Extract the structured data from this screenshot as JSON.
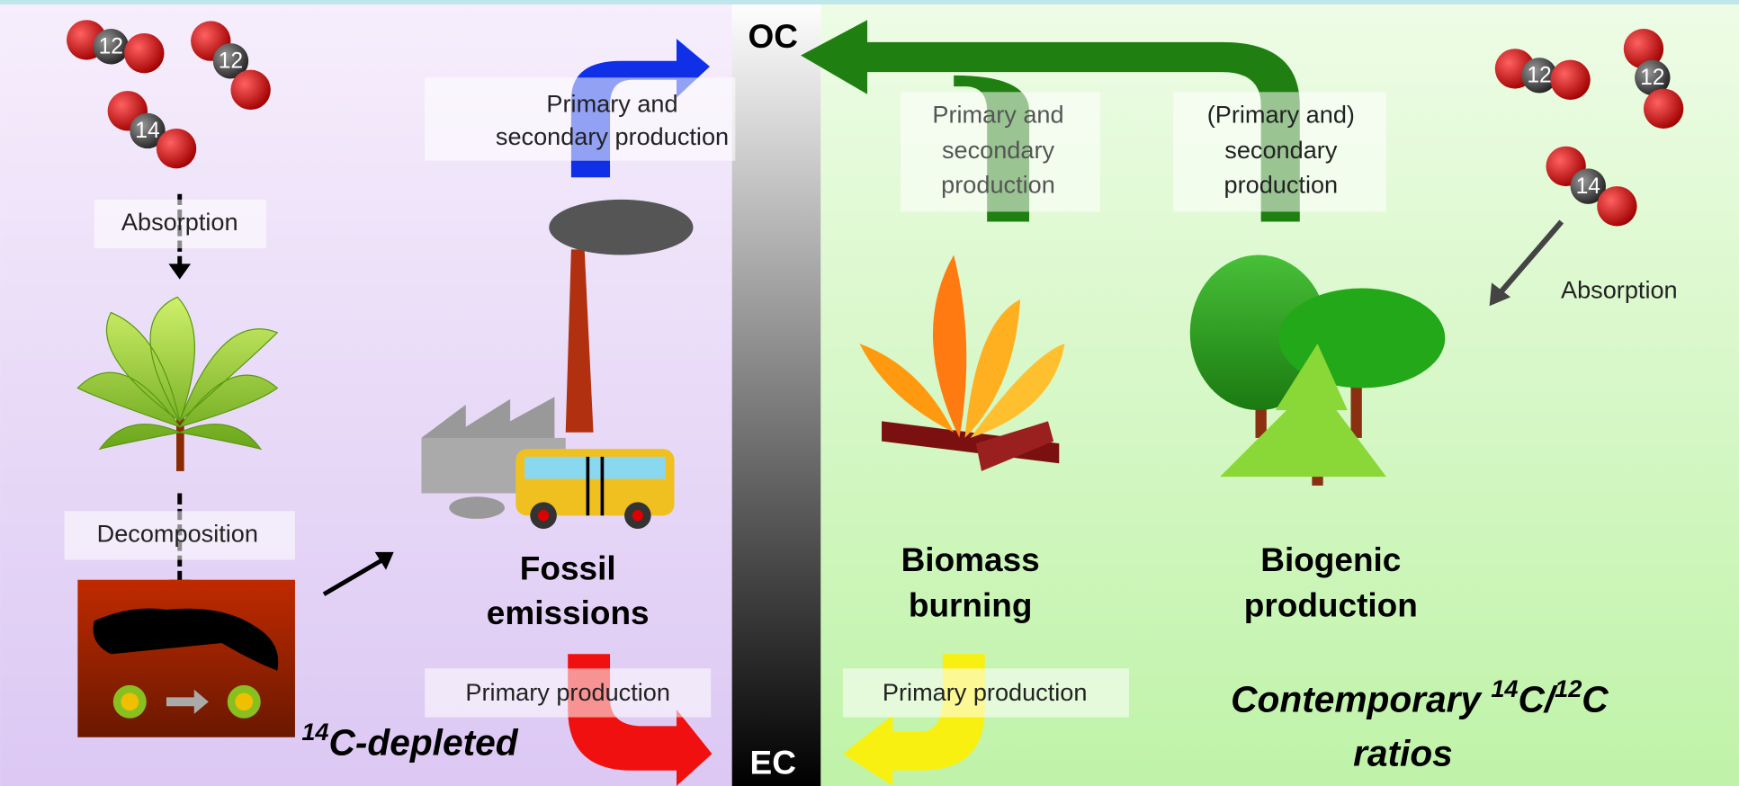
{
  "axis": {
    "top": "OC",
    "bottom": "EC"
  },
  "left": {
    "molecules": [
      "12",
      "12",
      "14"
    ],
    "absorption": "Absorption",
    "decomposition": "Decomposition",
    "source": [
      "Fossil",
      "emissions"
    ],
    "oc_label": [
      "Primary and",
      "secondary production"
    ],
    "ec_label": "Primary production",
    "signature": {
      "sup": "14",
      "text": "C-depleted"
    }
  },
  "right": {
    "molecules": [
      "12",
      "12",
      "14"
    ],
    "absorption": "Absorption",
    "biomass": {
      "source": [
        "Biomass",
        "burning"
      ],
      "oc_label": [
        "Primary and",
        "secondary",
        "production"
      ],
      "ec_label": "Primary production"
    },
    "biogenic": {
      "source": [
        "Biogenic",
        "production"
      ],
      "oc_label": [
        "(Primary and)",
        "secondary",
        "production"
      ]
    },
    "signature": {
      "line1": [
        "Contemporary ",
        "14",
        "C/",
        "12",
        "C"
      ],
      "line2": "ratios"
    }
  }
}
